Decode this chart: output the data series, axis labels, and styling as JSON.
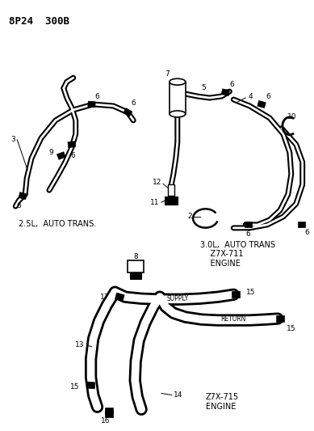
{
  "title": "8P24  300B",
  "bg_color": "#ffffff",
  "line_color": "#000000",
  "fig_width": 3.89,
  "fig_height": 5.33,
  "lbl_fs": 6.5,
  "title_fs": 9,
  "section_label_25L": "2.5L,  AUTO TRANS.",
  "section_label_30L": "3.0L,  AUTO TRANS\n    Z7X-711\n    ENGINE",
  "section_label_z715": "Z7X-715\nENGINE",
  "supply_text": "SUPPLY",
  "return_text": "RETURN"
}
